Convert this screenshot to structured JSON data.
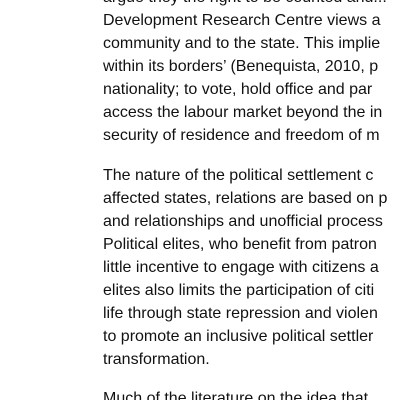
{
  "document": {
    "paragraphs": [
      {
        "lines": [
          "argue they the right to be counted and...",
          "Development Research Centre views a",
          "community and to the state. This implie",
          "within its borders’ (Benequista, 2010, p",
          "nationality; to vote, hold office and par",
          "access the labour market beyond the in",
          "security of residence and freedom of m"
        ]
      },
      {
        "lines": [
          "The nature of the political settlement c",
          "affected states, relations are based on p",
          "and relationships and unofficial process",
          "Political elites, who benefit from patron",
          "little incentive to engage with citizens a",
          "elites also limits the participation of citi",
          "life through state repression and violen",
          "to promote an inclusive political settler",
          "transformation."
        ]
      },
      {
        "lines": [
          "Much of the literature on the idea that..."
        ]
      }
    ]
  }
}
